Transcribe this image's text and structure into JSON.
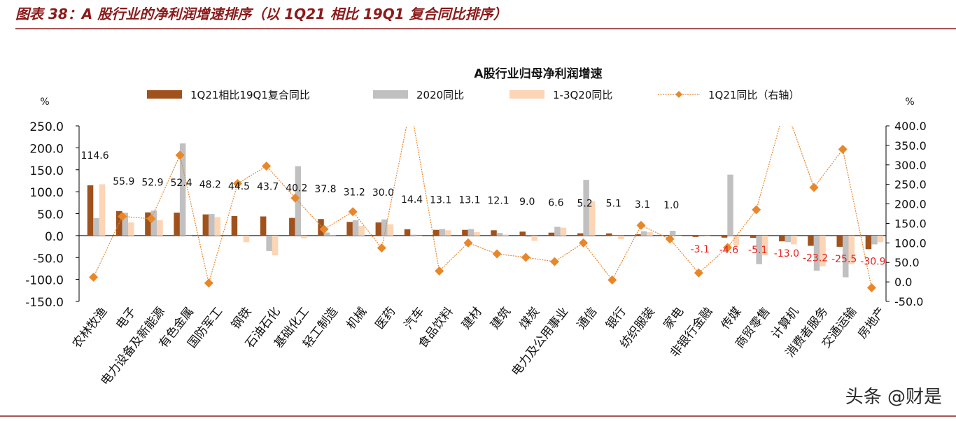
{
  "header": {
    "caption": "图表 38：A 股行业的净利润增速排序（以 1Q21 相比 19Q1 复合同比排序）"
  },
  "watermark": "头条 @财是",
  "colors": {
    "caption": "#8b1a1a",
    "rule": "#8b1a1a",
    "bar_compound": "#a0521c",
    "bar_2020": "#c0c0c0",
    "bar_q1_3": "#fbd5b5",
    "line": "#e8872a",
    "negative_label": "#e8211e"
  },
  "chart_data": {
    "type": "bar",
    "title": "A股行业归母净利润增速",
    "categories": [
      "农林牧渔",
      "电子",
      "电力设备及新能源",
      "有色金属",
      "国防军工",
      "钢铁",
      "石油石化",
      "基础化工",
      "轻工制造",
      "机械",
      "医药",
      "汽车",
      "食品饮料",
      "建材",
      "建筑",
      "煤炭",
      "电力及公用事业",
      "通信",
      "银行",
      "纺织服装",
      "家电",
      "非银行金融",
      "传媒",
      "商贸零售",
      "计算机",
      "消费者服务",
      "交通运输",
      "房地产"
    ],
    "series": [
      {
        "name": "1Q21相比19Q1复合同比",
        "axis": "left",
        "type": "bar",
        "values": [
          114.6,
          55.9,
          52.9,
          52.4,
          48.2,
          44.5,
          43.7,
          40.2,
          37.8,
          31.2,
          30.0,
          14.4,
          13.1,
          13.1,
          12.1,
          9.0,
          6.6,
          5.2,
          5.1,
          3.1,
          1.0,
          -3.1,
          -4.6,
          -5.1,
          -13.0,
          -23.2,
          -25.5,
          -30.9
        ]
      },
      {
        "name": "2020同比",
        "axis": "left",
        "type": "bar",
        "values": [
          40,
          52,
          57,
          210,
          49,
          0,
          -35,
          158,
          7,
          35,
          37,
          2,
          15,
          15,
          6,
          -3,
          20,
          127,
          0,
          10,
          11,
          -2,
          139,
          -65,
          -15,
          -80,
          -95,
          -20
        ]
      },
      {
        "name": "1-3Q20同比",
        "axis": "left",
        "type": "bar",
        "values": [
          117,
          30,
          35,
          0,
          42,
          -15,
          -45,
          -6,
          1,
          22,
          26,
          0,
          12,
          8,
          2,
          -12,
          18,
          78,
          -8,
          8,
          0,
          -2,
          -22,
          -45,
          -20,
          -70,
          -65,
          -15
        ]
      },
      {
        "name": "1Q21同比（右轴）",
        "axis": "right",
        "type": "line",
        "values": [
          12,
          168,
          162,
          325,
          -3,
          252,
          297,
          215,
          135,
          180,
          87,
          450,
          28,
          100,
          72,
          63,
          52,
          100,
          5,
          145,
          110,
          23,
          88,
          185,
          450,
          242,
          340,
          -15
        ]
      }
    ],
    "data_labels": [
      "114.6",
      "55.9",
      "52.9",
      "52.4",
      "48.2",
      "44.5",
      "43.7",
      "40.2",
      "37.8",
      "31.2",
      "30.0",
      "14.4",
      "13.1",
      "13.1",
      "12.1",
      "9.0",
      "6.6",
      "5.2",
      "5.1",
      "3.1",
      "1.0",
      "-3.1",
      "-4.6",
      "-5.1",
      "-13.0",
      "-23.2",
      "-25.5",
      "-30.9"
    ],
    "y_left": {
      "unit": "%",
      "ylim": [
        -150,
        250
      ],
      "ticks": [
        "250.0",
        "200.0",
        "150.0",
        "100.0",
        "50.0",
        "0.0",
        "-50.0",
        "-100.0",
        "-150.0"
      ]
    },
    "y_right": {
      "unit": "%",
      "ylim": [
        -50,
        400
      ],
      "ticks": [
        "400.0",
        "350.0",
        "300.0",
        "250.0",
        "200.0",
        "150.0",
        "100.0",
        "50.0",
        "0.0",
        "-50.0"
      ]
    },
    "legend": "top",
    "grid": false
  }
}
